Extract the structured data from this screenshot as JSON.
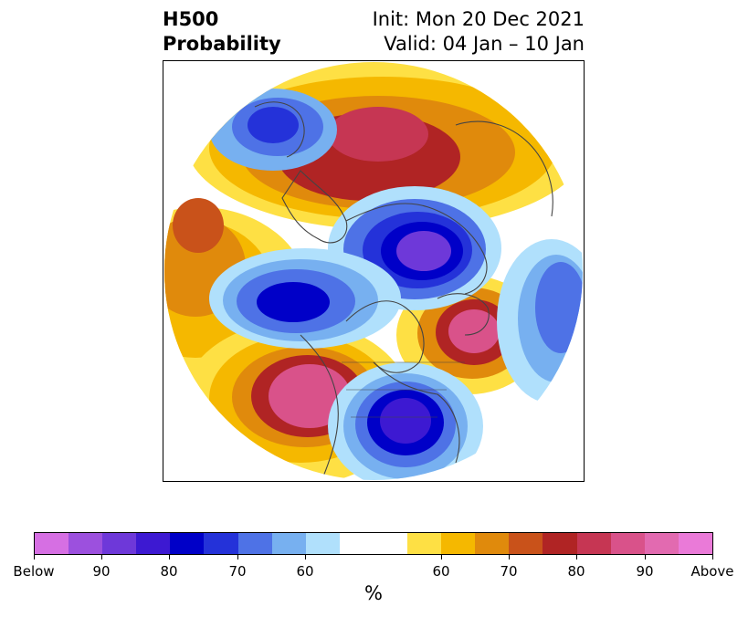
{
  "header": {
    "title_line1": "H500",
    "title_line2": "Probability",
    "init_text": "Init: Mon 20 Dec 2021",
    "valid_text": "Valid: 04 Jan – 10 Jan"
  },
  "colorbar": {
    "unit": "%",
    "colors": [
      "#d66fe3",
      "#9c50de",
      "#6e38d9",
      "#3d19d2",
      "#0000c8",
      "#2432d9",
      "#4e72e6",
      "#77b0f0",
      "#b0e0fc",
      "#ffffff",
      "#ffffff",
      "#fee044",
      "#f5b800",
      "#e08a0c",
      "#c9521a",
      "#b02424",
      "#c63653",
      "#d9528a",
      "#e26ab0",
      "#ea7ad8"
    ],
    "labels": [
      "Below",
      "90",
      "80",
      "70",
      "60",
      "60",
      "70",
      "80",
      "90",
      "Above"
    ]
  },
  "map": {
    "projection": "north-polar-stereographic",
    "colors": {
      "above_light": "#fee044",
      "above_mid": "#f5b800",
      "above_orange": "#e08a0c",
      "above_dark_orange": "#c9521a",
      "above_red": "#b02424",
      "above_crimson": "#c63653",
      "above_pink": "#d9528a",
      "below_light": "#b0e0fc",
      "below_sky": "#77b0f0",
      "below_blue": "#4e72e6",
      "below_royal": "#2432d9",
      "below_navy": "#0000c8",
      "below_indigo": "#3d19d2",
      "below_violet": "#6e38d9",
      "coastline": "#444444"
    }
  }
}
